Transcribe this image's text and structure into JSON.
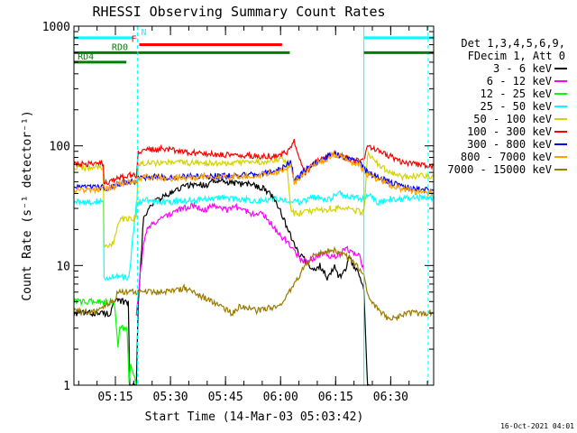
{
  "chart_data": {
    "type": "line",
    "title": "RHESSI Observing Summary Count Rates",
    "xlabel": "Start Time (14-Mar-03 05:03:42)",
    "ylabel": "Count Rate (s⁻¹ detector⁻¹)",
    "x_unit": "minutes after 05:03:42",
    "xlim": [
      0,
      98
    ],
    "ylim": [
      1,
      1000
    ],
    "yscale": "log",
    "x_ticks": [
      {
        "x": 11.3,
        "label": "05:15"
      },
      {
        "x": 26.3,
        "label": "05:30"
      },
      {
        "x": 41.3,
        "label": "05:45"
      },
      {
        "x": 56.3,
        "label": "06:00"
      },
      {
        "x": 71.3,
        "label": "06:15"
      },
      {
        "x": 86.3,
        "label": "06:30"
      }
    ],
    "y_ticks": [
      {
        "y": 1,
        "label": "1"
      },
      {
        "y": 10,
        "label": "10"
      },
      {
        "y": 100,
        "label": "100"
      },
      {
        "y": 1000,
        "label": "1000"
      }
    ],
    "legend_position": "right",
    "legend_header": [
      "Det 1,3,4,5,6,9,",
      "FDecim 1, Att 0"
    ],
    "series": [
      {
        "name": "3 - 6 keV",
        "color": "#000000",
        "x": [
          0,
          10,
          11,
          14.8,
          15.2,
          17,
          17.5,
          19,
          20,
          22,
          25,
          28,
          30,
          33,
          36,
          38,
          40,
          43,
          45,
          48,
          50,
          52,
          55,
          57,
          59,
          61,
          63,
          65,
          67,
          69,
          71,
          72,
          74,
          75,
          76,
          78,
          79,
          80,
          81
        ],
        "y": [
          4,
          4,
          5,
          5,
          1,
          1,
          5,
          25,
          28,
          35,
          38,
          43,
          46,
          48,
          47,
          52,
          50,
          49,
          48,
          48,
          46,
          44,
          35,
          25,
          18,
          13,
          11,
          9,
          10,
          8,
          10,
          8,
          9,
          12,
          10,
          8,
          6,
          1,
          1
        ]
      },
      {
        "name": "6 - 12 keV",
        "color": "#ff00ff",
        "x": [
          17,
          18,
          19,
          20,
          22,
          25,
          27,
          30,
          32,
          34,
          36,
          38,
          40,
          42,
          44,
          46,
          48,
          50,
          52,
          54,
          56,
          58,
          60,
          62,
          64,
          66,
          68,
          70,
          72,
          74,
          76,
          78,
          79
        ],
        "y": [
          4,
          8,
          15,
          20,
          23,
          26,
          28,
          30,
          32,
          31,
          29,
          32,
          31,
          29,
          31,
          30,
          27,
          28,
          26,
          22,
          18,
          16,
          13,
          11,
          11,
          12,
          13,
          12,
          12,
          14,
          13,
          12,
          9
        ]
      },
      {
        "name": "12 - 25 keV",
        "color": "#00ff00",
        "x": [
          0,
          5,
          8,
          10,
          11,
          12,
          12.5,
          14.5,
          15,
          15.5,
          17
        ],
        "y": [
          5,
          5,
          5,
          5,
          5,
          2,
          3,
          3,
          1,
          1.5,
          1
        ]
      },
      {
        "name": "25 - 50 keV",
        "color": "#00ffff",
        "x": [
          0,
          5,
          8,
          8.2,
          10,
          11,
          12.5,
          14.5,
          15,
          17,
          20,
          25,
          30,
          35,
          40,
          45,
          50,
          55,
          60,
          62,
          65,
          70,
          72,
          75,
          78,
          79,
          80,
          83,
          86,
          90,
          95,
          98
        ],
        "y": [
          34,
          34,
          35,
          8,
          8,
          8,
          8,
          8,
          8,
          34,
          35,
          34,
          35,
          36,
          37,
          36,
          35,
          36,
          35,
          34,
          37,
          36,
          40,
          38,
          36,
          36,
          40,
          33,
          36,
          36,
          37,
          36
        ]
      },
      {
        "name": "50 - 100 keV",
        "color": "#d3d300",
        "x": [
          0,
          5,
          7,
          8,
          8.2,
          10,
          11,
          12.5,
          15,
          17,
          17.5,
          20,
          25,
          30,
          35,
          40,
          45,
          50,
          55,
          57,
          58,
          59,
          60,
          63,
          66,
          70,
          74,
          76,
          78,
          79,
          80,
          83,
          86,
          90,
          95,
          98
        ],
        "y": [
          66,
          65,
          66,
          66,
          15,
          15,
          16,
          24,
          25,
          25,
          72,
          72,
          73,
          72,
          72,
          71,
          72,
          74,
          75,
          78,
          72,
          30,
          27,
          28,
          29,
          30,
          30,
          29,
          28,
          28,
          85,
          70,
          60,
          55,
          56,
          55
        ]
      },
      {
        "name": "100 - 300 keV",
        "color": "#ff0000",
        "x": [
          0,
          5,
          8,
          8.2,
          10,
          12,
          15,
          17,
          17.5,
          20,
          25,
          30,
          35,
          40,
          45,
          50,
          55,
          58,
          59,
          60,
          63,
          65,
          68,
          70,
          72,
          74,
          76,
          78,
          79,
          80,
          83,
          86,
          90,
          95,
          98
        ],
        "y": [
          70,
          70,
          72,
          50,
          50,
          53,
          57,
          57,
          90,
          92,
          95,
          90,
          86,
          84,
          83,
          82,
          82,
          88,
          95,
          110,
          60,
          70,
          78,
          85,
          85,
          80,
          75,
          75,
          75,
          100,
          90,
          82,
          72,
          70,
          68
        ]
      },
      {
        "name": "300 - 800 keV",
        "color": "#0000ff",
        "x": [
          0,
          5,
          8,
          10,
          12,
          15,
          17,
          17.5,
          20,
          25,
          30,
          35,
          40,
          45,
          50,
          55,
          58,
          59,
          60,
          63,
          65,
          68,
          70,
          72,
          74,
          76,
          78,
          79,
          80,
          83,
          86,
          90,
          95,
          98
        ],
        "y": [
          45,
          45,
          45,
          45,
          48,
          50,
          50,
          55,
          55,
          55,
          55,
          56,
          56,
          57,
          58,
          62,
          68,
          75,
          52,
          62,
          70,
          78,
          85,
          85,
          80,
          75,
          70,
          65,
          60,
          55,
          50,
          45,
          43,
          42
        ]
      },
      {
        "name": "800 - 7000 keV",
        "color": "#ff9f00",
        "x": [
          0,
          5,
          8,
          10,
          12,
          15,
          17,
          17.5,
          20,
          25,
          30,
          35,
          40,
          45,
          50,
          55,
          58,
          59,
          60,
          63,
          65,
          68,
          70,
          72,
          74,
          76,
          78,
          79,
          80,
          83,
          86,
          90,
          95,
          98
        ],
        "y": [
          43,
          43,
          44,
          44,
          47,
          50,
          50,
          53,
          55,
          54,
          54,
          55,
          55,
          56,
          57,
          60,
          65,
          72,
          50,
          60,
          68,
          76,
          82,
          83,
          78,
          73,
          68,
          62,
          58,
          52,
          47,
          43,
          41,
          40
        ]
      },
      {
        "name": "7000 - 15000 keV",
        "color": "#9b7a00",
        "x": [
          0,
          5,
          8,
          10,
          11,
          12,
          15,
          17,
          17.5,
          20,
          25,
          30,
          35,
          40,
          43,
          45,
          50,
          55,
          57,
          60,
          63,
          65,
          68,
          70,
          72,
          74,
          76,
          78,
          79,
          80,
          82,
          84,
          86,
          90,
          95,
          98
        ],
        "y": [
          4.2,
          4.0,
          4.5,
          5,
          5,
          6,
          6,
          6,
          6,
          6,
          6,
          6.5,
          5.5,
          4.5,
          4,
          4.5,
          4.2,
          4.5,
          5,
          7,
          10,
          12,
          13,
          13.5,
          13,
          12,
          11,
          9,
          8,
          6,
          4.5,
          4,
          3.5,
          4,
          4,
          4
        ]
      }
    ],
    "annotations": [
      {
        "label": "N",
        "color": "#00ffff",
        "y": 800,
        "segments": [
          [
            0,
            16.3
          ],
          [
            79,
            98
          ]
        ],
        "label_x": 18.3
      },
      {
        "label": "F",
        "color": "#ff0000",
        "y": 700,
        "segments": [
          [
            17.8,
            56.7
          ]
        ],
        "label_x": 15.6
      },
      {
        "label": "RD0",
        "color": "#008000",
        "y": 600,
        "segments": [
          [
            0,
            17.3
          ],
          [
            17.5,
            58.8
          ],
          [
            79,
            98
          ]
        ],
        "label_x": 10.3
      },
      {
        "label": "RD4",
        "color": "#008000",
        "y": 500,
        "segments": [
          [
            0,
            14.3
          ]
        ],
        "label_x": 1.0
      }
    ],
    "vertical_lines": [
      {
        "x": 17.3,
        "color": "#00ffff",
        "style": "dashed"
      },
      {
        "x": 79.0,
        "color": "#00ffff",
        "style": "solid"
      },
      {
        "x": 96.5,
        "color": "#00ffff",
        "style": "dashed"
      }
    ],
    "timestamp": "16-Oct-2021 04:01"
  }
}
